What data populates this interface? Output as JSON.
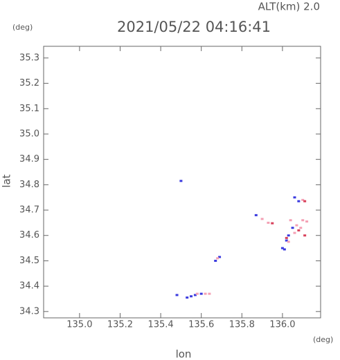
{
  "chart_data": {
    "type": "scatter",
    "title": "2021/05/22 04:16:41",
    "altitude_label": "ALT(km) 2.0",
    "y_unit": "(deg)",
    "x_unit": "(deg)",
    "x_label": "lon",
    "y_label": "lat",
    "xlim": [
      134.823,
      136.188
    ],
    "ylim": [
      34.275,
      35.346
    ],
    "xticks": [
      {
        "value": 135,
        "label": "135.0"
      },
      135.2,
      135.4,
      135.6,
      135.8,
      {
        "value": 136,
        "label": "136.0"
      }
    ],
    "yticks": [
      34.3,
      34.4,
      34.5,
      34.6,
      34.7,
      34.8,
      34.9,
      {
        "value": 35,
        "label": "35.0"
      },
      35.1,
      35.2,
      35.3
    ],
    "series": [
      {
        "color": "#3a3adf",
        "x": [
          135.5,
          135.48,
          135.53,
          135.55,
          135.57,
          135.6,
          135.67,
          135.69,
          135.87,
          136.0,
          136.01,
          136.03,
          136.06,
          136.08,
          136.05,
          136.02
        ],
        "values": [
          34.815,
          34.365,
          34.355,
          34.36,
          34.365,
          34.37,
          34.5,
          34.515,
          34.68,
          34.55,
          34.545,
          34.6,
          34.75,
          34.735,
          34.63,
          34.58
        ]
      },
      {
        "color": "#f4a0b4",
        "x": [
          135.58,
          135.62,
          135.64,
          135.68,
          135.9,
          135.93,
          136.04,
          136.07,
          136.1,
          136.12,
          136.1,
          136.06,
          136.09,
          136.03
        ],
        "values": [
          34.37,
          34.37,
          34.37,
          34.51,
          34.665,
          34.65,
          34.66,
          34.64,
          34.66,
          34.655,
          34.74,
          34.61,
          34.63,
          34.575
        ]
      },
      {
        "color": "#d8405a",
        "x": [
          135.95,
          136.11,
          136.11,
          136.08,
          136.02
        ],
        "values": [
          34.648,
          34.6,
          34.735,
          34.62,
          34.59
        ]
      }
    ]
  }
}
